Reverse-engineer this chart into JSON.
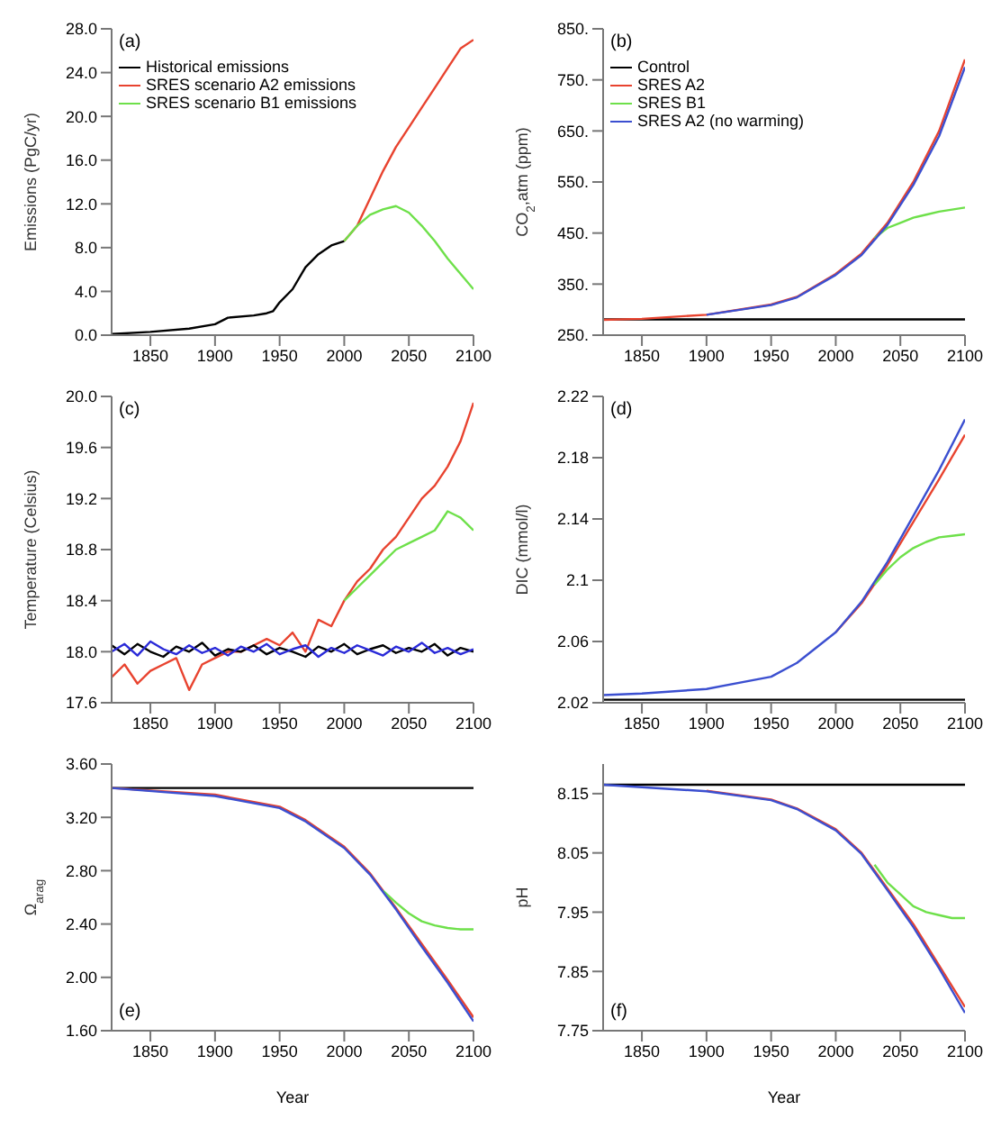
{
  "chart_data": [
    {
      "type": "line",
      "ylabel": "Emissions (PgC/yr)",
      "annotations": [
        "(a)"
      ],
      "xlim": [
        1820,
        2100
      ],
      "xticks": [
        1850,
        1900,
        1950,
        2000,
        2050,
        2100
      ],
      "ylim": [
        0,
        28
      ],
      "yticks": [
        {
          "value": 0,
          "label": "0.0"
        },
        {
          "value": 4,
          "label": "4.0"
        },
        {
          "value": 8,
          "label": "8.0"
        },
        {
          "value": 12,
          "label": "12.0"
        },
        {
          "value": 16,
          "label": "16.0"
        },
        {
          "value": 20,
          "label": "20.0"
        },
        {
          "value": 24,
          "label": "24.0"
        },
        {
          "value": 28,
          "label": "28.0"
        }
      ],
      "legend": "top left",
      "series": [
        {
          "name": "Historical emissions",
          "color": "#000000",
          "x": [
            1820,
            1850,
            1880,
            1900,
            1910,
            1930,
            1940,
            1945,
            1950,
            1960,
            1970,
            1980,
            1990,
            2000
          ],
          "values": [
            0.1,
            0.3,
            0.6,
            1.0,
            1.6,
            1.8,
            2.0,
            2.2,
            3.0,
            4.2,
            6.2,
            7.4,
            8.2,
            8.6
          ]
        },
        {
          "name": "SRES scenario A2 emissions",
          "color": "#e8432f",
          "x": [
            2000,
            2010,
            2020,
            2030,
            2040,
            2050,
            2060,
            2070,
            2080,
            2090,
            2100
          ],
          "values": [
            8.6,
            10.0,
            12.5,
            15.0,
            17.2,
            19.0,
            20.8,
            22.6,
            24.4,
            26.2,
            27.0
          ]
        },
        {
          "name": "SRES scenario B1 emissions",
          "color": "#6ee04a",
          "x": [
            2000,
            2010,
            2020,
            2030,
            2040,
            2050,
            2060,
            2070,
            2080,
            2090,
            2100
          ],
          "values": [
            8.6,
            10.0,
            11.0,
            11.5,
            11.8,
            11.2,
            10.0,
            8.6,
            7.0,
            5.6,
            4.2
          ]
        }
      ]
    },
    {
      "type": "line",
      "ylabel": "CO$_{2}$,atm (ppm)",
      "annotations": [
        "(b)"
      ],
      "xlim": [
        1820,
        2100
      ],
      "xticks": [
        1850,
        1900,
        1950,
        2000,
        2050,
        2100
      ],
      "ylim": [
        250,
        850
      ],
      "yticks": [
        {
          "value": 250,
          "label": "250."
        },
        {
          "value": 350,
          "label": "350."
        },
        {
          "value": 450,
          "label": "450."
        },
        {
          "value": 550,
          "label": "550."
        },
        {
          "value": 650,
          "label": "650."
        },
        {
          "value": 750,
          "label": "750."
        },
        {
          "value": 850,
          "label": "850."
        }
      ],
      "legend": "top left",
      "series": [
        {
          "name": "Control",
          "color": "#000000",
          "x": [
            1820,
            1900,
            2000,
            2100
          ],
          "values": [
            281,
            281,
            281,
            281
          ]
        },
        {
          "name": "SRES A2",
          "color": "#e8432f",
          "x": [
            1820,
            1850,
            1900,
            1950,
            1970,
            2000,
            2020,
            2040,
            2060,
            2080,
            2100
          ],
          "values": [
            280,
            282,
            290,
            310,
            325,
            370,
            410,
            470,
            550,
            650,
            790
          ]
        },
        {
          "name": "SRES B1",
          "color": "#6ee04a",
          "x": [
            2030,
            2040,
            2050,
            2060,
            2070,
            2080,
            2090,
            2100
          ],
          "values": [
            440,
            460,
            470,
            480,
            486,
            492,
            496,
            500
          ]
        },
        {
          "name": "SRES A2 (no warming)",
          "color": "#3b4fd0",
          "x": [
            1900,
            1950,
            1970,
            2000,
            2020,
            2040,
            2060,
            2080,
            2100
          ],
          "values": [
            290,
            309,
            324,
            368,
            407,
            466,
            544,
            640,
            775
          ]
        }
      ]
    },
    {
      "type": "line",
      "ylabel": "Temperature (Celsius)",
      "annotations": [
        "(c)"
      ],
      "xlim": [
        1820,
        2100
      ],
      "xticks": [
        1850,
        1900,
        1950,
        2000,
        2050,
        2100
      ],
      "ylim": [
        17.6,
        20.0
      ],
      "yticks": [
        {
          "value": 17.6,
          "label": "17.6"
        },
        {
          "value": 18,
          "label": "18.0"
        },
        {
          "value": 18.4,
          "label": "18.4"
        },
        {
          "value": 18.8,
          "label": "18.8"
        },
        {
          "value": 19.2,
          "label": "19.2"
        },
        {
          "value": 19.6,
          "label": "19.6"
        },
        {
          "value": 20,
          "label": "20.0"
        }
      ],
      "series": [
        {
          "color": "#e8432f",
          "x": [
            1820,
            1830,
            1840,
            1850,
            1860,
            1870,
            1880,
            1890,
            1900,
            1910,
            1920,
            1930,
            1940,
            1950,
            1960,
            1970,
            1980,
            1990,
            2000,
            2010,
            2020,
            2030,
            2040,
            2050,
            2060,
            2070,
            2080,
            2090,
            2100
          ],
          "values": [
            17.8,
            17.9,
            17.75,
            17.85,
            17.9,
            17.95,
            17.7,
            17.9,
            17.95,
            18.0,
            18.0,
            18.05,
            18.1,
            18.05,
            18.15,
            18.0,
            18.25,
            18.2,
            18.4,
            18.55,
            18.65,
            18.8,
            18.9,
            19.05,
            19.2,
            19.3,
            19.45,
            19.65,
            19.95
          ]
        },
        {
          "color": "#6ee04a",
          "x": [
            2000,
            2010,
            2020,
            2030,
            2040,
            2050,
            2060,
            2070,
            2080,
            2090,
            2100
          ],
          "values": [
            18.4,
            18.5,
            18.6,
            18.7,
            18.8,
            18.85,
            18.9,
            18.95,
            19.1,
            19.05,
            18.95
          ]
        },
        {
          "color": "#000000",
          "x": [
            1820,
            1830,
            1840,
            1850,
            1860,
            1870,
            1880,
            1890,
            1900,
            1910,
            1920,
            1930,
            1940,
            1950,
            1960,
            1970,
            1980,
            1990,
            2000,
            2010,
            2020,
            2030,
            2040,
            2050,
            2060,
            2070,
            2080,
            2090,
            2100
          ],
          "values": [
            18.05,
            17.98,
            18.06,
            18.0,
            17.96,
            18.04,
            18.0,
            18.07,
            17.97,
            18.02,
            18.0,
            18.05,
            17.98,
            18.03,
            18.0,
            17.96,
            18.04,
            18.0,
            18.06,
            17.98,
            18.02,
            18.05,
            17.99,
            18.03,
            18.0,
            18.06,
            17.97,
            18.03,
            18.0
          ]
        },
        {
          "color": "#2a2ad8",
          "x": [
            1820,
            1830,
            1840,
            1850,
            1860,
            1870,
            1880,
            1890,
            1900,
            1910,
            1920,
            1930,
            1940,
            1950,
            1960,
            1970,
            1980,
            1990,
            2000,
            2010,
            2020,
            2030,
            2040,
            2050,
            2060,
            2070,
            2080,
            2090,
            2100
          ],
          "values": [
            18.0,
            18.06,
            17.97,
            18.08,
            18.02,
            17.98,
            18.05,
            17.99,
            18.03,
            17.97,
            18.04,
            18.0,
            18.06,
            17.98,
            18.02,
            18.05,
            17.96,
            18.03,
            17.99,
            18.05,
            18.01,
            17.97,
            18.04,
            18.0,
            18.07,
            17.99,
            18.03,
            17.98,
            18.02
          ]
        }
      ]
    },
    {
      "type": "line",
      "ylabel": "DIC (mmol/l)",
      "annotations": [
        "(d)"
      ],
      "xlim": [
        1820,
        2100
      ],
      "xticks": [
        1850,
        1900,
        1950,
        2000,
        2050,
        2100
      ],
      "ylim": [
        2.02,
        2.22
      ],
      "yticks": [
        2.02,
        2.06,
        2.1,
        2.14,
        2.18,
        2.22
      ],
      "series": [
        {
          "color": "#000000",
          "x": [
            1820,
            1900,
            2000,
            2100
          ],
          "values": [
            2.022,
            2.022,
            2.022,
            2.022
          ]
        },
        {
          "color": "#e8432f",
          "x": [
            2000,
            2020,
            2040,
            2060,
            2080,
            2100
          ],
          "values": [
            2.066,
            2.085,
            2.11,
            2.138,
            2.166,
            2.195
          ]
        },
        {
          "color": "#6ee04a",
          "x": [
            2030,
            2040,
            2050,
            2060,
            2070,
            2080,
            2090,
            2100
          ],
          "values": [
            2.097,
            2.107,
            2.115,
            2.121,
            2.125,
            2.128,
            2.129,
            2.13
          ]
        },
        {
          "color": "#3b4fd0",
          "x": [
            1820,
            1850,
            1900,
            1950,
            1970,
            2000,
            2020,
            2040,
            2060,
            2080,
            2100
          ],
          "values": [
            2.025,
            2.026,
            2.029,
            2.037,
            2.046,
            2.066,
            2.086,
            2.112,
            2.142,
            2.172,
            2.205
          ]
        }
      ]
    },
    {
      "type": "line",
      "ylabel": "Ω$_{arag}$",
      "xlabel": "Year",
      "annotations": [
        "(e)"
      ],
      "xlim": [
        1820,
        2100
      ],
      "xticks": [
        1850,
        1900,
        1950,
        2000,
        2050,
        2100
      ],
      "ylim": [
        1.6,
        3.6
      ],
      "yticks": [
        {
          "value": 1.6,
          "label": "1.60"
        },
        {
          "value": 2,
          "label": "2.00"
        },
        {
          "value": 2.4,
          "label": "2.40"
        },
        {
          "value": 2.8,
          "label": "2.80"
        },
        {
          "value": 3.2,
          "label": "3.20"
        },
        {
          "value": 3.6,
          "label": "3.60"
        }
      ],
      "series": [
        {
          "color": "#000000",
          "x": [
            1820,
            1900,
            2000,
            2100
          ],
          "values": [
            3.42,
            3.42,
            3.42,
            3.42
          ]
        },
        {
          "color": "#e8432f",
          "x": [
            1820,
            1900,
            1950,
            1970,
            2000,
            2020,
            2040,
            2060,
            2080,
            2100
          ],
          "values": [
            3.42,
            3.37,
            3.28,
            3.18,
            2.98,
            2.78,
            2.52,
            2.25,
            1.98,
            1.7
          ]
        },
        {
          "color": "#6ee04a",
          "x": [
            2030,
            2040,
            2050,
            2060,
            2070,
            2080,
            2090,
            2100
          ],
          "values": [
            2.65,
            2.56,
            2.48,
            2.42,
            2.39,
            2.37,
            2.36,
            2.36
          ]
        },
        {
          "color": "#3b4fd0",
          "x": [
            1820,
            1900,
            1950,
            1970,
            2000,
            2020,
            2040,
            2060,
            2080,
            2100
          ],
          "values": [
            3.42,
            3.36,
            3.27,
            3.17,
            2.97,
            2.77,
            2.51,
            2.23,
            1.96,
            1.67
          ]
        }
      ]
    },
    {
      "type": "line",
      "ylabel": "pH",
      "xlabel": "Year",
      "annotations": [
        "(f)"
      ],
      "xlim": [
        1820,
        2100
      ],
      "xticks": [
        1850,
        1900,
        1950,
        2000,
        2050,
        2100
      ],
      "ylim": [
        7.75,
        8.2
      ],
      "yticks": [
        7.75,
        7.85,
        7.95,
        8.05,
        8.15
      ],
      "series": [
        {
          "color": "#000000",
          "x": [
            1820,
            1900,
            2000,
            2100
          ],
          "values": [
            8.165,
            8.165,
            8.165,
            8.165
          ]
        },
        {
          "color": "#e8432f",
          "x": [
            1900,
            1950,
            1970,
            2000,
            2020,
            2040,
            2060,
            2080,
            2100
          ],
          "values": [
            8.155,
            8.14,
            8.125,
            8.09,
            8.05,
            7.99,
            7.93,
            7.86,
            7.79
          ]
        },
        {
          "color": "#6ee04a",
          "x": [
            2030,
            2040,
            2050,
            2060,
            2070,
            2080,
            2090,
            2100
          ],
          "values": [
            8.03,
            8.0,
            7.98,
            7.96,
            7.95,
            7.945,
            7.94,
            7.94
          ]
        },
        {
          "color": "#3b4fd0",
          "x": [
            1820,
            1900,
            1950,
            1970,
            2000,
            2020,
            2040,
            2060,
            2080,
            2100
          ],
          "values": [
            8.165,
            8.154,
            8.139,
            8.124,
            8.088,
            8.048,
            7.987,
            7.925,
            7.855,
            7.78
          ]
        }
      ]
    }
  ]
}
